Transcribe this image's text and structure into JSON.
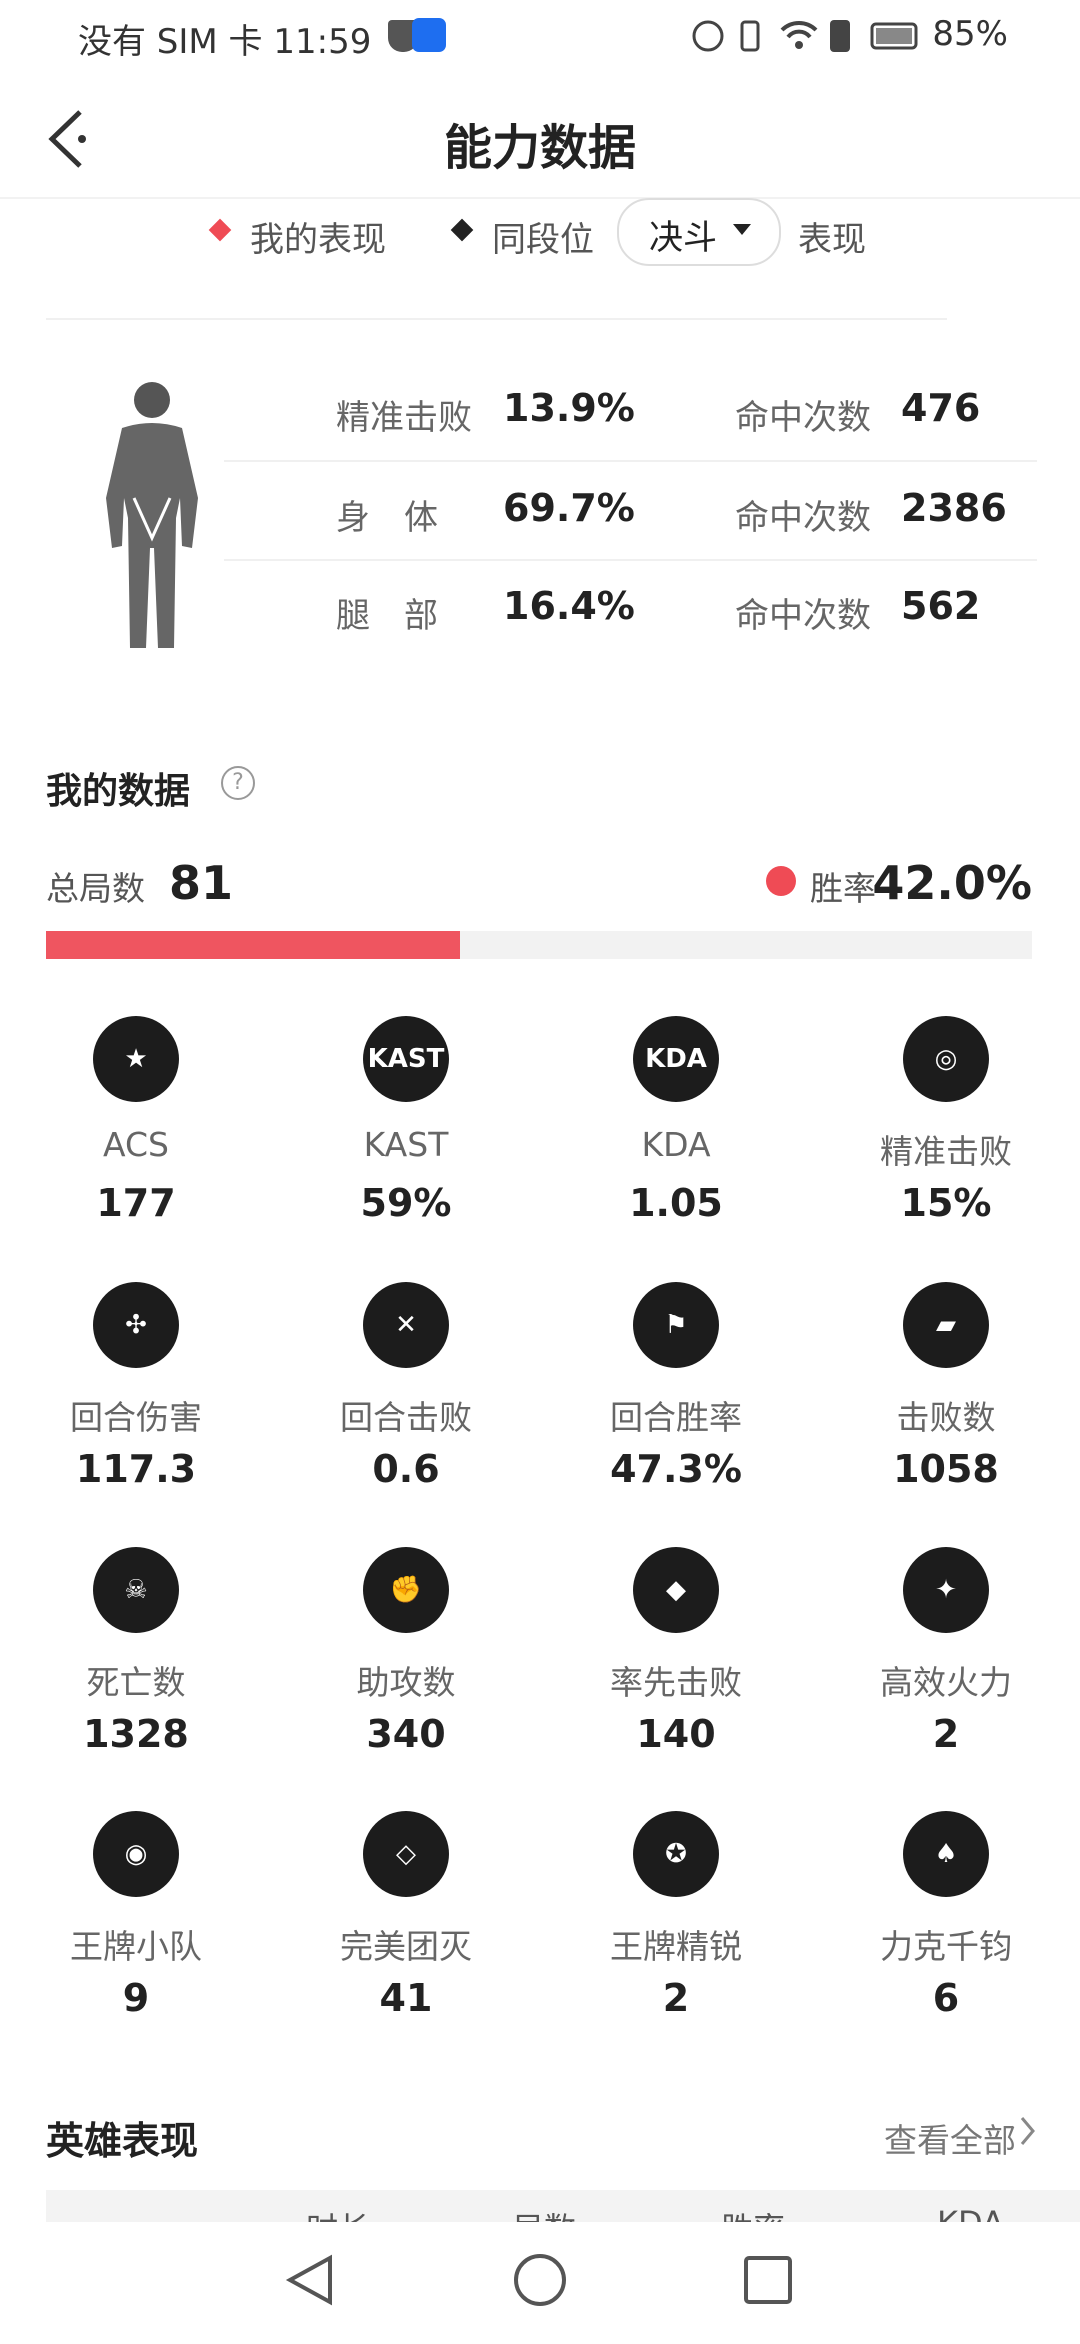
{
  "status_bar": {
    "left": "没有 SIM 卡 11:59",
    "battery": "85%"
  },
  "header": {
    "title": "能力数据"
  },
  "legend": {
    "mine": "我的表现",
    "peer": "同段位",
    "dropdown": "决斗",
    "suffix": "表现"
  },
  "hit_stats": [
    {
      "label": "精准击败",
      "percent": "13.9%",
      "hits_label": "命中次数",
      "hits": "476"
    },
    {
      "label": "身　体",
      "percent": "69.7%",
      "hits_label": "命中次数",
      "hits": "2386"
    },
    {
      "label": "腿　部",
      "percent": "16.4%",
      "hits_label": "命中次数",
      "hits": "562"
    }
  ],
  "my_data": {
    "title": "我的数据",
    "total_label": "总局数",
    "total": "81",
    "win_label": "胜率",
    "win_rate": "42.0%"
  },
  "stats": [
    {
      "icon_text": "★",
      "label": "ACS",
      "value": "177"
    },
    {
      "icon_text": "KAST",
      "label": "KAST",
      "value": "59%"
    },
    {
      "icon_text": "KDA",
      "label": "KDA",
      "value": "1.05"
    },
    {
      "icon_text": "◎",
      "label": "精准击败",
      "value": "15%"
    },
    {
      "icon_text": "✣",
      "label": "回合伤害",
      "value": "117.3"
    },
    {
      "icon_text": "✕",
      "label": "回合击败",
      "value": "0.6"
    },
    {
      "icon_text": "⚑",
      "label": "回合胜率",
      "value": "47.3%"
    },
    {
      "icon_text": "▰",
      "label": "击败数",
      "value": "1058"
    },
    {
      "icon_text": "☠",
      "label": "死亡数",
      "value": "1328"
    },
    {
      "icon_text": "✊",
      "label": "助攻数",
      "value": "340"
    },
    {
      "icon_text": "◆",
      "label": "率先击败",
      "value": "140"
    },
    {
      "icon_text": "✦",
      "label": "高效火力",
      "value": "2"
    },
    {
      "icon_text": "◉",
      "label": "王牌小队",
      "value": "9"
    },
    {
      "icon_text": "◇",
      "label": "完美团灭",
      "value": "41"
    },
    {
      "icon_text": "✪",
      "label": "王牌精锐",
      "value": "2"
    },
    {
      "icon_text": "♠",
      "label": "力克千钧",
      "value": "6"
    }
  ],
  "heroes": {
    "title": "英雄表现",
    "view_all": "查看全部",
    "columns": [
      "时长",
      "局数",
      "胜率",
      "KDA"
    ]
  }
}
